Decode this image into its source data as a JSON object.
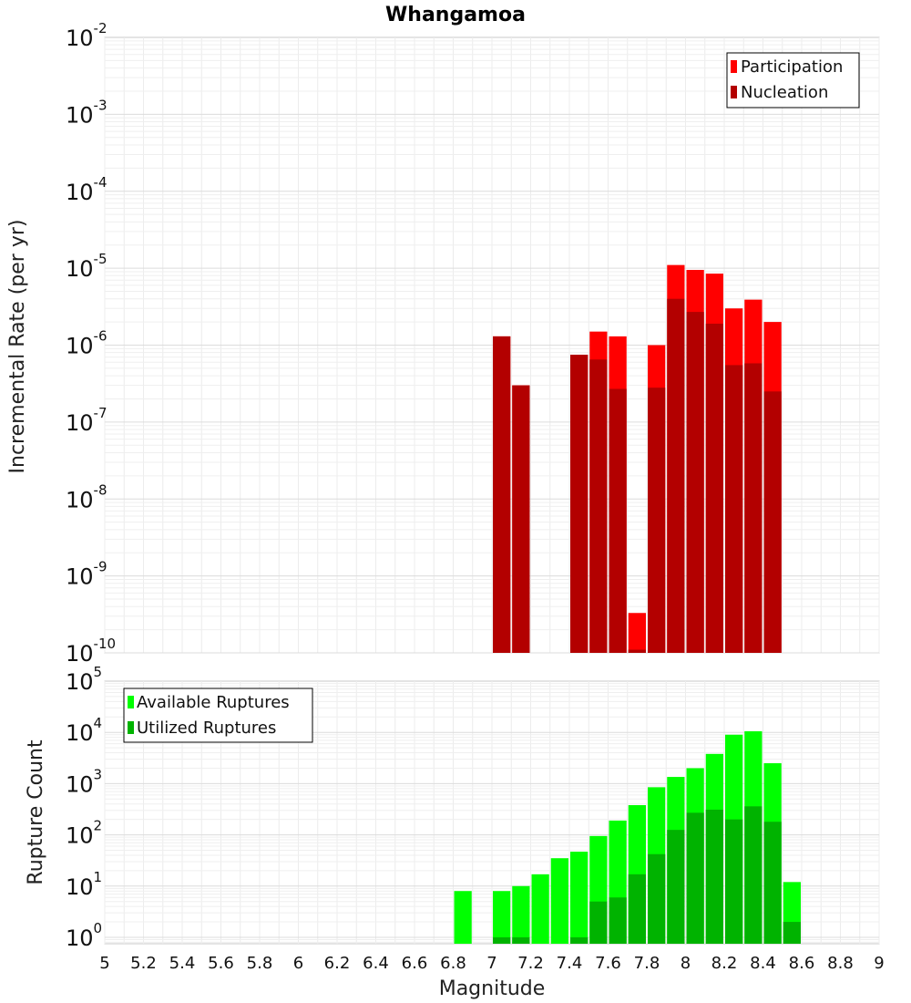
{
  "chart_data": [
    {
      "type": "bar",
      "title": "Whangamoa",
      "ylabel": "Incremental Rate (per yr)",
      "xlabel": "",
      "yscale": "log",
      "ylim": [
        1e-10,
        0.01
      ],
      "xlim": [
        5,
        9
      ],
      "grid": true,
      "legend": "top-right",
      "y_ticks": [
        {
          "base": "10",
          "exp": "-10"
        },
        {
          "base": "10",
          "exp": "-9"
        },
        {
          "base": "10",
          "exp": "-8"
        },
        {
          "base": "10",
          "exp": "-7"
        },
        {
          "base": "10",
          "exp": "-6"
        },
        {
          "base": "10",
          "exp": "-5"
        },
        {
          "base": "10",
          "exp": "-4"
        },
        {
          "base": "10",
          "exp": "-3"
        },
        {
          "base": "10",
          "exp": "-2"
        }
      ],
      "bar_width": 0.1,
      "series": [
        {
          "name": "Participation",
          "color": "#ff0000",
          "x": [
            7.05,
            7.15,
            7.45,
            7.55,
            7.65,
            7.75,
            7.85,
            7.95,
            8.05,
            8.15,
            8.25,
            8.35,
            8.45
          ],
          "values": [
            1.3e-06,
            3e-07,
            7.5e-07,
            1.5e-06,
            1.3e-06,
            3.3e-10,
            1e-06,
            1.1e-05,
            9.5e-06,
            8.5e-06,
            3e-06,
            3.9e-06,
            2e-06
          ]
        },
        {
          "name": "Nucleation",
          "color": "#b30000",
          "x": [
            7.05,
            7.15,
            7.45,
            7.55,
            7.65,
            7.75,
            7.85,
            7.95,
            8.05,
            8.15,
            8.25,
            8.35,
            8.45
          ],
          "values": [
            1.3e-06,
            3e-07,
            7.5e-07,
            6.5e-07,
            2.7e-07,
            1.1e-10,
            2.8e-07,
            4e-06,
            2.7e-06,
            1.9e-06,
            5.5e-07,
            5.8e-07,
            2.5e-07
          ]
        }
      ]
    },
    {
      "type": "bar",
      "title": "",
      "ylabel": "Rupture Count",
      "xlabel": "Magnitude",
      "yscale": "log",
      "ylim": [
        0.75,
        100000.0
      ],
      "xlim": [
        5,
        9
      ],
      "grid": true,
      "legend": "top-left",
      "x_ticks": [
        "5",
        "5.2",
        "5.4",
        "5.6",
        "5.8",
        "6",
        "6.2",
        "6.4",
        "6.6",
        "6.8",
        "7",
        "7.2",
        "7.4",
        "7.6",
        "7.8",
        "8",
        "8.2",
        "8.4",
        "8.6",
        "8.8",
        "9"
      ],
      "y_ticks": [
        {
          "base": "10",
          "exp": "0"
        },
        {
          "base": "10",
          "exp": "1"
        },
        {
          "base": "10",
          "exp": "2"
        },
        {
          "base": "10",
          "exp": "3"
        },
        {
          "base": "10",
          "exp": "4"
        },
        {
          "base": "10",
          "exp": "5"
        }
      ],
      "bar_width": 0.1,
      "series": [
        {
          "name": "Available Ruptures",
          "color": "#00ff00",
          "x": [
            6.85,
            7.05,
            7.15,
            7.25,
            7.35,
            7.45,
            7.55,
            7.65,
            7.75,
            7.85,
            7.95,
            8.05,
            8.15,
            8.25,
            8.35,
            8.45,
            8.55
          ],
          "values": [
            8,
            8,
            10,
            17,
            35,
            47,
            95,
            190,
            380,
            850,
            1350,
            2000,
            3800,
            9000,
            10500,
            2500,
            12
          ]
        },
        {
          "name": "Utilized Ruptures",
          "color": "#00b300",
          "x": [
            7.05,
            7.15,
            7.45,
            7.55,
            7.65,
            7.75,
            7.85,
            7.95,
            8.05,
            8.15,
            8.25,
            8.35,
            8.45,
            8.55
          ],
          "values": [
            1,
            1,
            1,
            5,
            6,
            17,
            42,
            125,
            270,
            310,
            200,
            360,
            180,
            2
          ]
        }
      ]
    }
  ]
}
